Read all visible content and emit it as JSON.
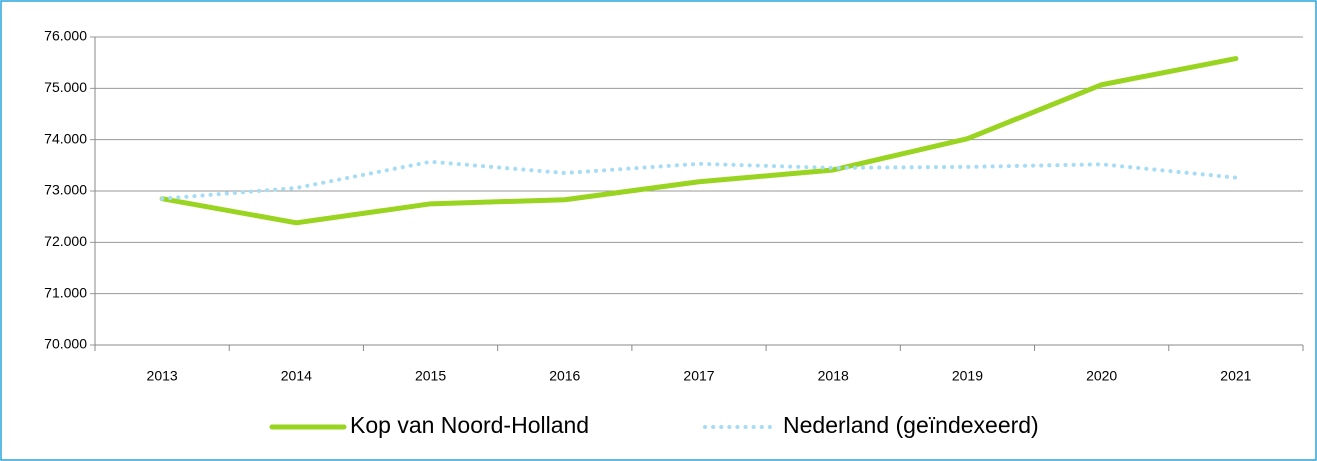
{
  "chart_data": {
    "type": "line",
    "categories": [
      "2013",
      "2014",
      "2015",
      "2016",
      "2017",
      "2018",
      "2019",
      "2020",
      "2021"
    ],
    "series": [
      {
        "name": "Kop van Noord-Holland",
        "color": "#99d420",
        "values": [
          72850,
          72380,
          72750,
          72830,
          73180,
          73410,
          74020,
          75070,
          75580
        ]
      },
      {
        "name": "Nederland (geïndexeerd)",
        "color": "#a6dcf4",
        "values": [
          72850,
          73060,
          73570,
          73350,
          73530,
          73450,
          73470,
          73520,
          73260
        ]
      }
    ],
    "ylim": [
      70000,
      76000
    ],
    "yticks": [
      {
        "value": 70000,
        "label": "70.000"
      },
      {
        "value": 71000,
        "label": "71.000"
      },
      {
        "value": 72000,
        "label": "72.000"
      },
      {
        "value": 73000,
        "label": "73.000"
      },
      {
        "value": 74000,
        "label": "74.000"
      },
      {
        "value": 75000,
        "label": "75.000"
      },
      {
        "value": 76000,
        "label": "76.000"
      }
    ],
    "grid": true,
    "legend": "bottom"
  }
}
